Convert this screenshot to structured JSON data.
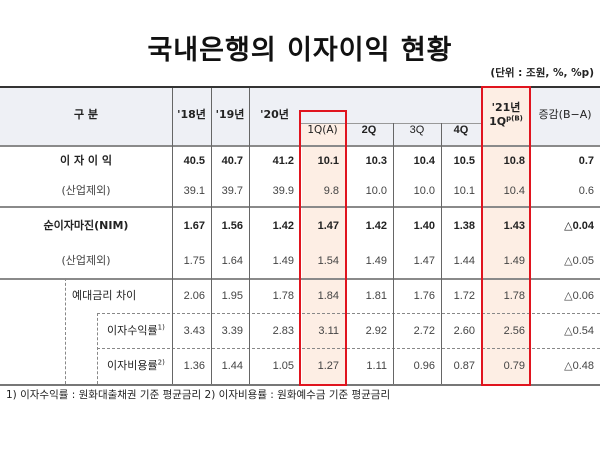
{
  "title": "국내은행의 이자이익 현황",
  "unit": "(단위 : 조원, %, %p)",
  "colors": {
    "highlight_fill": "#fdeee4",
    "highlight_border": "#e0141e",
    "header_band": "#eef0f5"
  },
  "header": {
    "category": "구 분",
    "y2018": "'18년",
    "y2019": "'19년",
    "y2020": "'20년",
    "q1a": "1Q(A)",
    "q2": "2Q",
    "q3": "3Q",
    "q4": "4Q",
    "y2021_line1": "'21년",
    "y2021_line2": "1Q",
    "y2021_sup": "p(B)",
    "change": "증감(B−A)"
  },
  "rows": [
    {
      "label": "이 자 이 익",
      "bold": true,
      "values": [
        "40.5",
        "40.7",
        "41.2",
        "10.1",
        "10.3",
        "10.4",
        "10.5",
        "10.8",
        "0.7"
      ]
    },
    {
      "label": "(산업제외)",
      "bold": false,
      "values": [
        "39.1",
        "39.7",
        "39.9",
        "9.8",
        "10.0",
        "10.0",
        "10.1",
        "10.4",
        "0.6"
      ]
    },
    {
      "label": "순이자마진(NIM)",
      "bold": true,
      "values": [
        "1.67",
        "1.56",
        "1.42",
        "1.47",
        "1.42",
        "1.40",
        "1.38",
        "1.43",
        "△0.04"
      ]
    },
    {
      "label": "(산업제외)",
      "bold": false,
      "values": [
        "1.75",
        "1.64",
        "1.49",
        "1.54",
        "1.49",
        "1.47",
        "1.44",
        "1.49",
        "△0.05"
      ]
    },
    {
      "label": "예대금리 차이",
      "bold": false,
      "values": [
        "2.06",
        "1.95",
        "1.78",
        "1.84",
        "1.81",
        "1.76",
        "1.72",
        "1.78",
        "△0.06"
      ]
    },
    {
      "label": "이자수익률",
      "sup": "1)",
      "bold": false,
      "values": [
        "3.43",
        "3.39",
        "2.83",
        "3.11",
        "2.92",
        "2.72",
        "2.60",
        "2.56",
        "△0.54"
      ]
    },
    {
      "label": "이자비용률",
      "sup": "2)",
      "bold": false,
      "values": [
        "1.36",
        "1.44",
        "1.05",
        "1.27",
        "1.11",
        "0.96",
        "0.87",
        "0.79",
        "△0.48"
      ]
    }
  ],
  "footnote": "1) 이자수익률 : 원화대출채권 기준 평균금리 2) 이자비용률 : 원화예수금 기준 평균금리"
}
